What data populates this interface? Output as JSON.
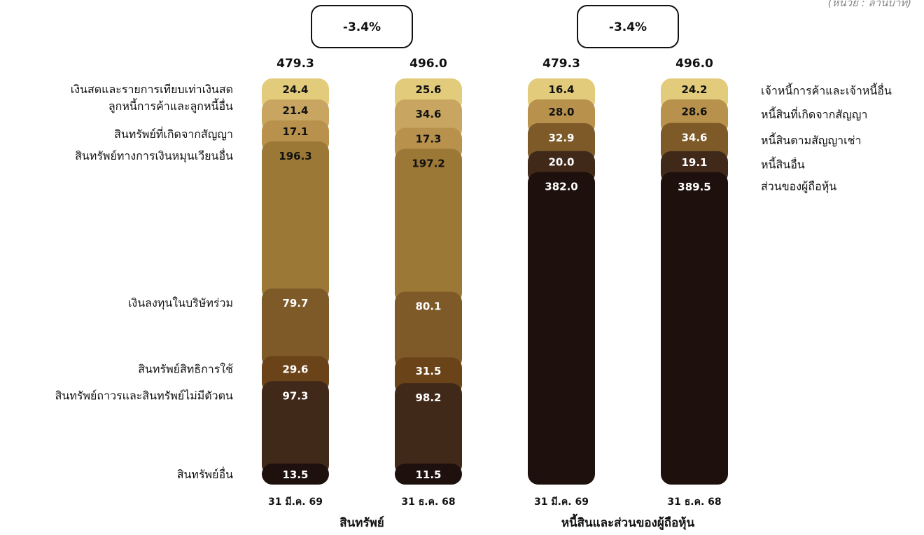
{
  "unit_label": "(หน่วย : ล้านบาท)",
  "colors": {
    "c1": "#E3CB7C",
    "c2": "#C8A661",
    "c3": "#B8924D",
    "c4": "#9C7836",
    "c5": "#7D5A28",
    "c6": "#6B4319",
    "c7": "#41291A",
    "c8": "#1E100C",
    "box_border": "#111111"
  },
  "chart_data": {
    "type": "bar",
    "stacked": true,
    "unit": "ล้านบาท",
    "groups": [
      {
        "title": "สินทรัพย์",
        "change": "-3.4%",
        "categories": [
          "31 มี.ค. 69",
          "31 ธ.ค. 68"
        ],
        "totals": [
          "479.3",
          "496.0"
        ],
        "series": [
          {
            "name": "เงินสดและรายการเทียบเท่าเงินสด",
            "color": "c1",
            "values": [
              24.4,
              25.6
            ]
          },
          {
            "name": "ลูกหนี้การค้าและลูกหนี้อื่น",
            "color": "c2",
            "values": [
              21.4,
              34.6
            ]
          },
          {
            "name": "สินทรัพย์ที่เกิดจากสัญญา",
            "color": "c3",
            "values": [
              17.1,
              17.3
            ]
          },
          {
            "name": "สินทรัพย์ทางการเงินหมุนเวียนอื่น",
            "color": "c4",
            "values": [
              196.3,
              197.2
            ]
          },
          {
            "name": "เงินลงทุนในบริษัทร่วม",
            "color": "c5",
            "values": [
              79.7,
              80.1
            ]
          },
          {
            "name": "สินทรัพย์สิทธิการใช้",
            "color": "c6",
            "values": [
              29.6,
              31.5
            ]
          },
          {
            "name": "สินทรัพย์ถาวรและสินทรัพย์ไม่มีตัวตน",
            "color": "c7",
            "values": [
              97.3,
              98.2
            ]
          },
          {
            "name": "สินทรัพย์อื่น",
            "color": "c8",
            "values": [
              13.5,
              11.5
            ]
          }
        ]
      },
      {
        "title": "หนี้สินและส่วนของผู้ถือหุ้น",
        "change": "-3.4%",
        "categories": [
          "31 มี.ค. 69",
          "31 ธ.ค. 68"
        ],
        "totals": [
          "479.3",
          "496.0"
        ],
        "series": [
          {
            "name": "เจ้าหนี้การค้าและเจ้าหนี้อื่น",
            "color": "c1",
            "values": [
              16.4,
              24.2
            ]
          },
          {
            "name": "หนี้สินที่เกิดจากสัญญา",
            "color": "c3",
            "values": [
              28.0,
              28.6
            ]
          },
          {
            "name": "หนี้สินตามสัญญาเช่า",
            "color": "c5",
            "values": [
              32.9,
              34.6
            ]
          },
          {
            "name": "หนี้สินอื่น",
            "color": "c7",
            "values": [
              20.0,
              19.1
            ]
          },
          {
            "name": "ส่วนของผู้ถือหุ้น",
            "color": "c8",
            "values": [
              382.0,
              389.5
            ]
          }
        ]
      }
    ]
  }
}
